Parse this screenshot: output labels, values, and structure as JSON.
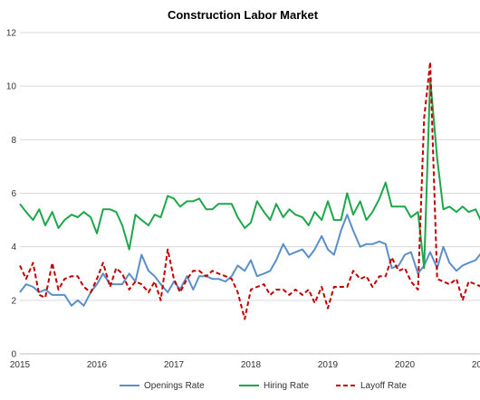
{
  "chart_data": {
    "type": "line",
    "title": "Construction Labor Market",
    "xlabel": "",
    "ylabel": "",
    "ylim": [
      0,
      12
    ],
    "xlim": [
      2015,
      2021
    ],
    "y_ticks": [
      "0",
      "2",
      "4",
      "6",
      "8",
      "10",
      "12"
    ],
    "x_ticks": [
      "2015",
      "2016",
      "2017",
      "2018",
      "2019",
      "2020",
      "2021"
    ],
    "grid": "horizontal",
    "legend_position": "bottom",
    "x": [
      2015.0,
      2015.08,
      2015.17,
      2015.25,
      2015.33,
      2015.42,
      2015.5,
      2015.58,
      2015.67,
      2015.75,
      2015.83,
      2015.92,
      2016.0,
      2016.08,
      2016.17,
      2016.25,
      2016.33,
      2016.42,
      2016.5,
      2016.58,
      2016.67,
      2016.75,
      2016.83,
      2016.92,
      2017.0,
      2017.08,
      2017.17,
      2017.25,
      2017.33,
      2017.42,
      2017.5,
      2017.58,
      2017.67,
      2017.75,
      2017.83,
      2017.92,
      2018.0,
      2018.08,
      2018.17,
      2018.25,
      2018.33,
      2018.42,
      2018.5,
      2018.58,
      2018.67,
      2018.75,
      2018.83,
      2018.92,
      2019.0,
      2019.08,
      2019.17,
      2019.25,
      2019.33,
      2019.42,
      2019.5,
      2019.58,
      2019.67,
      2019.75,
      2019.83,
      2019.92,
      2020.0,
      2020.08,
      2020.17,
      2020.25,
      2020.33,
      2020.42,
      2020.5,
      2020.58,
      2020.67,
      2020.75,
      2020.83,
      2020.92,
      2021.0
    ],
    "series": [
      {
        "name": "Openings Rate",
        "color": "#5b8fc7",
        "dash": "solid",
        "values": [
          2.3,
          2.6,
          2.5,
          2.3,
          2.4,
          2.2,
          2.2,
          2.2,
          1.8,
          2.0,
          1.8,
          2.3,
          2.6,
          3.0,
          2.6,
          2.6,
          2.6,
          3.0,
          2.7,
          3.7,
          3.1,
          2.9,
          2.6,
          2.3,
          2.7,
          2.4,
          2.9,
          2.4,
          2.9,
          2.9,
          2.8,
          2.8,
          2.7,
          2.9,
          3.3,
          3.1,
          3.5,
          2.9,
          3.0,
          3.1,
          3.5,
          4.1,
          3.7,
          3.8,
          3.9,
          3.6,
          3.9,
          4.4,
          3.9,
          3.7,
          4.6,
          5.2,
          4.6,
          4.0,
          4.1,
          4.1,
          4.2,
          4.1,
          3.2,
          3.3,
          3.7,
          3.8,
          3.0,
          3.3,
          3.8,
          3.2,
          4.0,
          3.4,
          3.1,
          3.3,
          3.4,
          3.5,
          3.8
        ]
      },
      {
        "name": "Hiring Rate",
        "color": "#1ea64b",
        "dash": "solid",
        "values": [
          5.6,
          5.3,
          5.0,
          5.4,
          4.8,
          5.3,
          4.7,
          5.0,
          5.2,
          5.1,
          5.3,
          5.1,
          4.5,
          5.4,
          5.4,
          5.3,
          4.8,
          3.9,
          5.2,
          5.0,
          4.8,
          5.2,
          5.1,
          5.9,
          5.8,
          5.5,
          5.7,
          5.7,
          5.8,
          5.4,
          5.4,
          5.6,
          5.6,
          5.6,
          5.1,
          4.7,
          4.9,
          5.7,
          5.3,
          5.0,
          5.6,
          5.1,
          5.4,
          5.2,
          5.1,
          4.8,
          5.3,
          5.0,
          5.7,
          5.0,
          5.0,
          6.0,
          5.2,
          5.7,
          5.0,
          5.3,
          5.8,
          6.4,
          5.5,
          5.5,
          5.5,
          5.1,
          5.3,
          3.2,
          10.3,
          7.3,
          5.4,
          5.5,
          5.3,
          5.5,
          5.3,
          5.4,
          4.9
        ]
      },
      {
        "name": "Layoff Rate",
        "color": "#c00000",
        "dash": "dashed",
        "values": [
          3.3,
          2.8,
          3.4,
          2.2,
          2.1,
          3.4,
          2.4,
          2.8,
          2.9,
          2.9,
          2.5,
          2.3,
          2.8,
          3.4,
          2.5,
          3.2,
          3.0,
          2.4,
          2.7,
          2.6,
          2.3,
          2.7,
          2.0,
          3.9,
          2.8,
          2.3,
          2.8,
          3.1,
          3.1,
          2.9,
          3.1,
          3.0,
          2.9,
          2.8,
          2.3,
          1.3,
          2.4,
          2.5,
          2.6,
          2.2,
          2.4,
          2.4,
          2.2,
          2.4,
          2.2,
          2.4,
          1.9,
          2.5,
          1.7,
          2.5,
          2.5,
          2.5,
          3.1,
          2.8,
          2.9,
          2.5,
          2.9,
          2.9,
          3.6,
          3.1,
          3.2,
          2.7,
          2.4,
          8.8,
          10.9,
          2.8,
          2.7,
          2.6,
          2.8,
          2.0,
          2.7,
          2.6,
          2.5
        ]
      }
    ]
  }
}
